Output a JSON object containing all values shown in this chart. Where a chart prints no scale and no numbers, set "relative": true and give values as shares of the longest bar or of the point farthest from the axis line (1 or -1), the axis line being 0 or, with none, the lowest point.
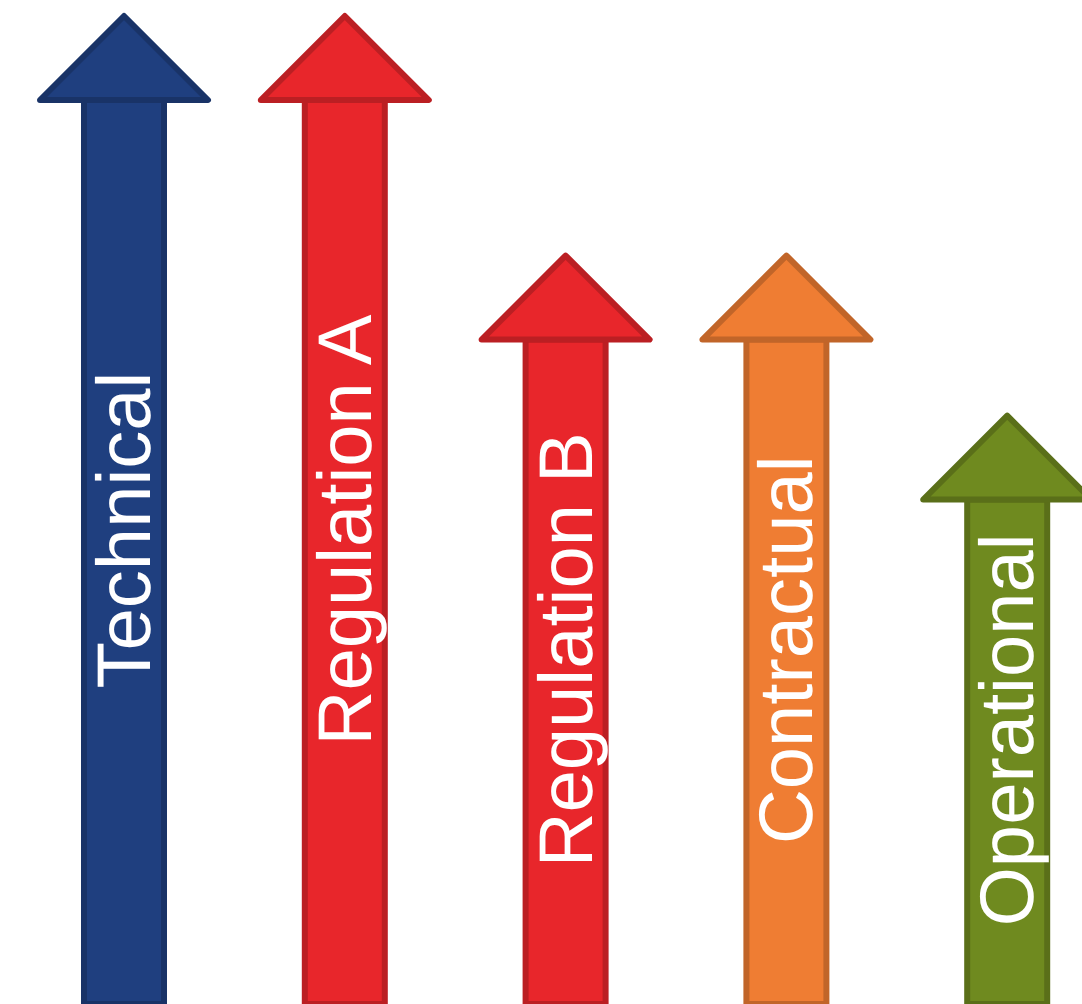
{
  "chart_data": {
    "type": "bar",
    "relative": true,
    "categories": [
      "Technical",
      "Regulation A",
      "Regulation B",
      "Contractual",
      "Operational"
    ],
    "values": [
      1,
      1,
      0.735,
      0.735,
      0.558
    ],
    "colors": [
      "#1f3f7f",
      "#e8262b",
      "#e8262b",
      "#ef7d33",
      "#6f8a1f"
    ]
  }
}
